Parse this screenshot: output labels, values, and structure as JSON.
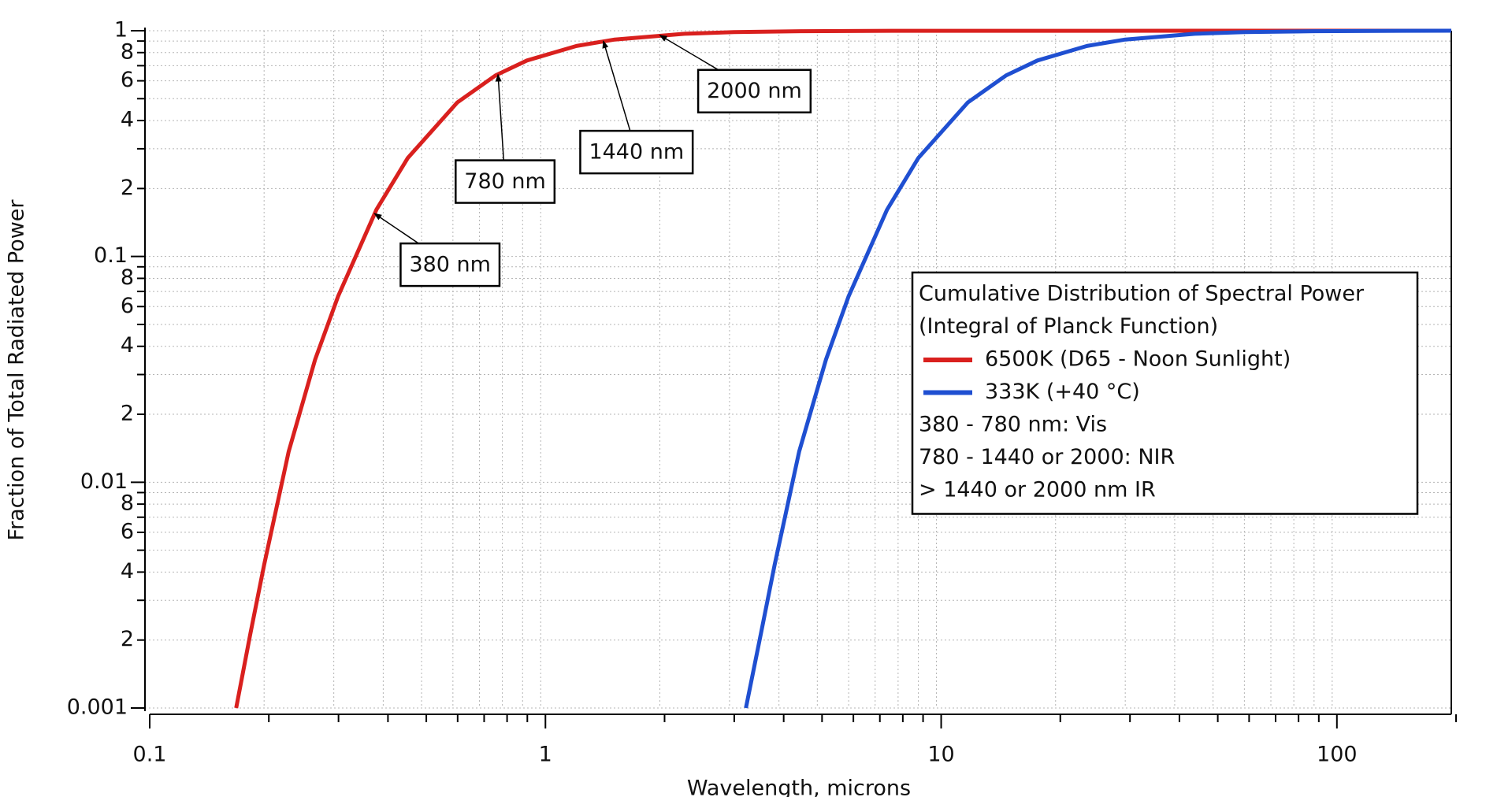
{
  "chart_data": {
    "type": "line",
    "x_label": "Wavelength, microns",
    "y_label": "Fraction of Total Radiated Power",
    "xlog": true,
    "ylog": true,
    "grid": true,
    "xlim": [
      0.1,
      200
    ],
    "ylim": [
      0.001,
      1
    ],
    "xticks": [
      0.1,
      1,
      10,
      100
    ],
    "xminorticks": [
      0.2,
      0.3,
      0.4,
      0.5,
      0.6,
      0.7,
      0.8,
      0.9,
      2,
      3,
      4,
      5,
      6,
      7,
      8,
      9,
      20,
      30,
      40,
      50,
      60,
      70,
      80,
      90,
      200
    ],
    "yticks": [
      0.001,
      {
        "value": 0.002,
        "label": "2"
      },
      {
        "value": 0.004,
        "label": "4"
      },
      {
        "value": 0.006,
        "label": "6"
      },
      {
        "value": 0.008,
        "label": "8"
      },
      0.01,
      {
        "value": 0.02,
        "label": "2"
      },
      {
        "value": 0.04,
        "label": "4"
      },
      {
        "value": 0.06,
        "label": "6"
      },
      {
        "value": 0.08,
        "label": "8"
      },
      0.1,
      {
        "value": 0.2,
        "label": "2"
      },
      {
        "value": 0.4,
        "label": "4"
      },
      {
        "value": 0.6,
        "label": "6"
      },
      {
        "value": 0.8,
        "label": "8"
      },
      1
    ],
    "yminorticks": [
      0.003,
      0.005,
      0.007,
      0.009,
      0.03,
      0.05,
      0.07,
      0.09,
      0.3,
      0.5,
      0.7,
      0.9
    ],
    "series": [
      {
        "name": "6500K (D65 - Noon Sunlight)",
        "color": "#d9201e",
        "x": [
          0.17,
          0.1846,
          0.2,
          0.2308,
          0.2692,
          0.3077,
          0.3846,
          0.4615,
          0.6154,
          0.769,
          0.923,
          1.231,
          1.538,
          2.308,
          3.077,
          4.615,
          7.69,
          200
        ],
        "values": [
          0.001,
          0.00213,
          0.0043,
          0.0137,
          0.035,
          0.0667,
          0.1614,
          0.2732,
          0.481,
          0.634,
          0.738,
          0.856,
          0.914,
          0.969,
          0.986,
          0.995,
          0.999,
          1
        ]
      },
      {
        "name": "333K (+40 °C)",
        "color": "#1f4fd1",
        "x": [
          3.3,
          3.6,
          3.9,
          4.5,
          5.26,
          6.0,
          7.5,
          9.0,
          12,
          15,
          18,
          24,
          30,
          45,
          60,
          90,
          150,
          200
        ],
        "values": [
          0.001,
          0.00213,
          0.0043,
          0.0137,
          0.035,
          0.0667,
          0.161,
          0.273,
          0.481,
          0.634,
          0.738,
          0.856,
          0.914,
          0.969,
          0.986,
          0.995,
          0.999,
          0.9997
        ]
      }
    ],
    "legend_title": [
      "Cumulative Distribution of Spectral Power",
      "(Integral of Planck Function)"
    ],
    "legend_notes": [
      "380 - 780 nm: Vis",
      "780 - 1440 or 2000: NIR",
      "> 1440 or 2000 nm IR"
    ],
    "annotations": [
      {
        "text": "380 nm",
        "x": 0.38,
        "y": 0.155
      },
      {
        "text": "780 nm",
        "x": 0.78,
        "y": 0.64
      },
      {
        "text": "1440 nm",
        "x": 1.44,
        "y": 0.9
      },
      {
        "text": "2000 nm",
        "x": 2.0,
        "y": 0.955
      }
    ]
  }
}
